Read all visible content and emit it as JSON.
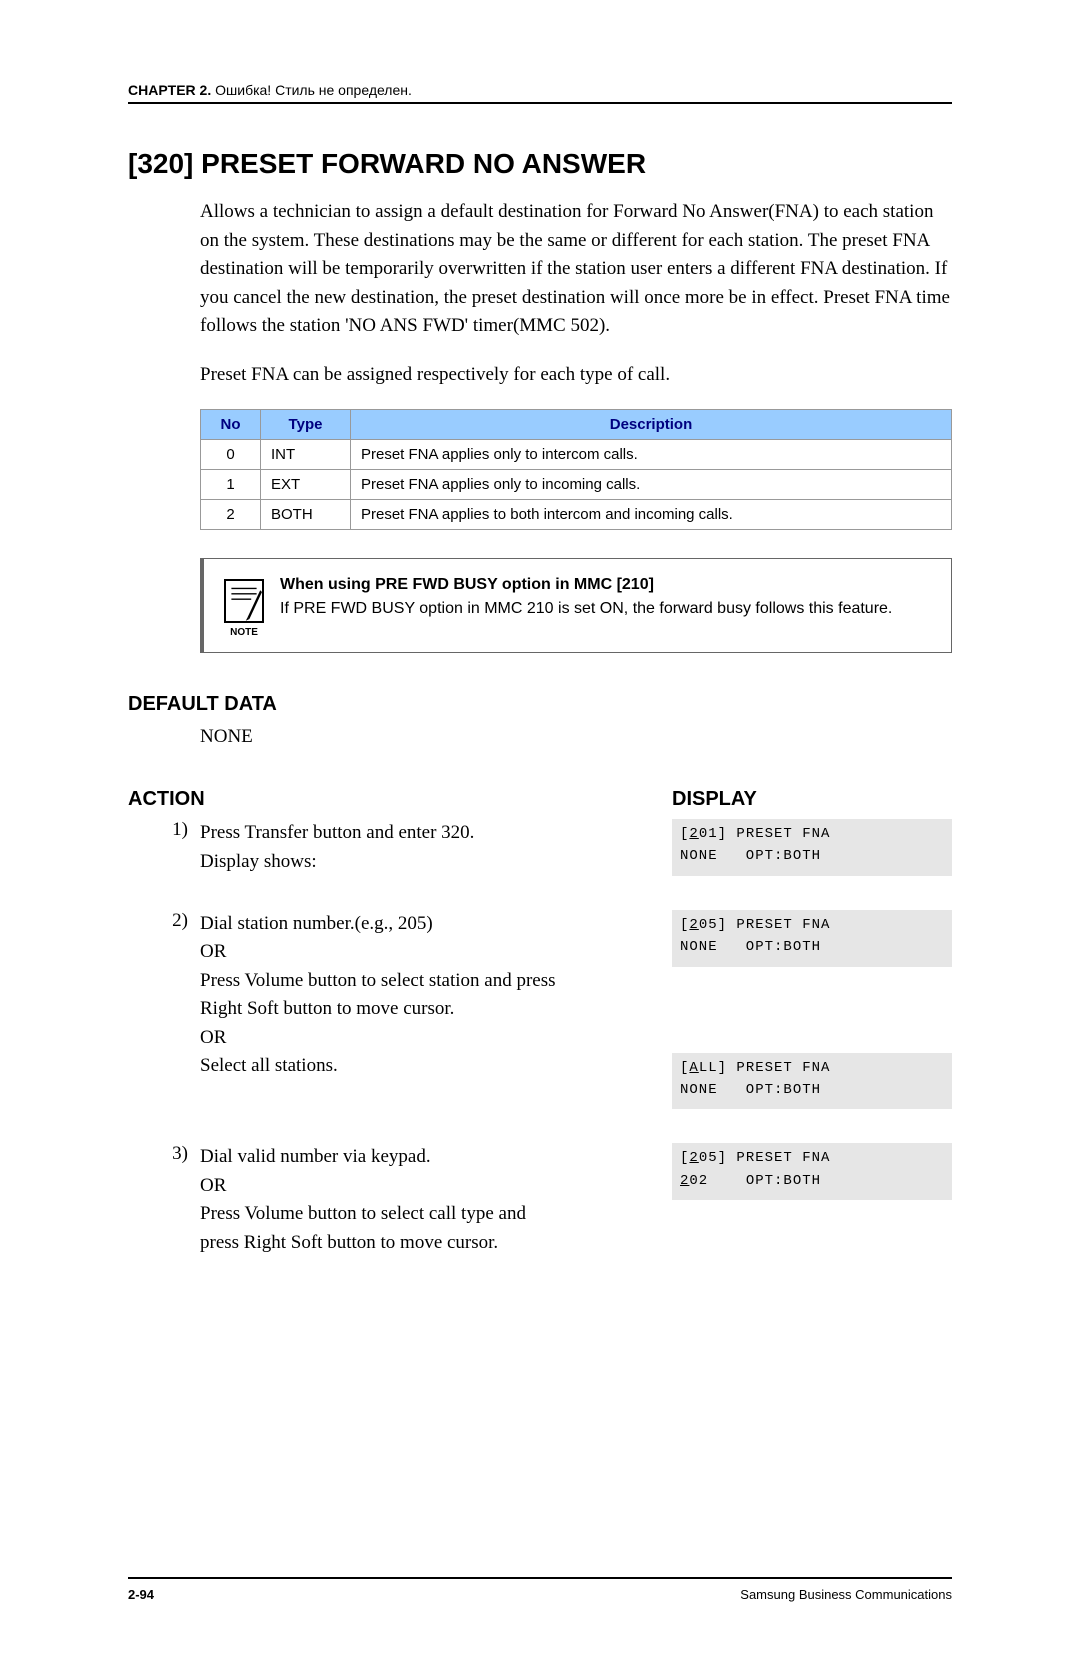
{
  "header": {
    "chapter_label": "CHAPTER 2.",
    "chapter_note": "Ошибка! Стиль не определен."
  },
  "title": "[320] PRESET FORWARD NO ANSWER",
  "paragraphs": {
    "p1": "Allows a technician to assign a default destination for Forward No Answer(FNA) to each station on the system. These destinations may be the same or different for each station. The preset FNA destination will be temporarily overwritten if the station user enters a different FNA destination. If you cancel the new destination, the preset destination will once more be in effect. Preset FNA time follows the station 'NO ANS FWD' timer(MMC 502).",
    "p2": "Preset FNA can be assigned respectively for each type of call."
  },
  "table": {
    "headers": {
      "no": "No",
      "type": "Type",
      "description": "Description"
    },
    "rows": [
      {
        "no": "0",
        "type": "INT",
        "desc": "Preset FNA applies only to intercom calls."
      },
      {
        "no": "1",
        "type": "EXT",
        "desc": "Preset FNA applies only to incoming calls."
      },
      {
        "no": "2",
        "type": "BOTH",
        "desc": "Preset FNA applies to both intercom and incoming calls."
      }
    ],
    "header_bg": "#99ccff",
    "header_color": "#000080"
  },
  "note": {
    "label": "NOTE",
    "title": "When using PRE FWD BUSY option in MMC [210]",
    "body": "If PRE FWD BUSY option in MMC 210 is set ON, the forward busy follows this feature."
  },
  "default_data": {
    "heading": "DEFAULT DATA",
    "value": "NONE"
  },
  "headings": {
    "action": "ACTION",
    "display": "DISPLAY"
  },
  "steps": [
    {
      "num": "1)",
      "lines": [
        "Press Transfer button and enter 320.",
        "Display shows:"
      ],
      "displays": [
        {
          "line1_pre": "[",
          "line1_u": "2",
          "line1_post": "01] PRESET FNA",
          "line2": "NONE   OPT:BOTH"
        }
      ]
    },
    {
      "num": "2)",
      "lines": [
        "Dial station number.(e.g., 205)",
        "OR",
        "Press Volume button to select station and press",
        "Right Soft button to move cursor.",
        "OR",
        "Select all stations."
      ],
      "displays": [
        {
          "line1_pre": "[",
          "line1_u": "2",
          "line1_post": "05] PRESET FNA",
          "line2": "NONE   OPT:BOTH"
        },
        {
          "spacer": true
        },
        {
          "line1_pre": "[",
          "line1_u": "A",
          "line1_post": "LL] PRESET FNA",
          "line2": "NONE   OPT:BOTH"
        }
      ]
    },
    {
      "num": "3)",
      "lines": [
        "Dial valid number via keypad.",
        "OR",
        "Press Volume button to select call type and",
        "press Right Soft button to move cursor."
      ],
      "displays": [
        {
          "line1_pre": "[",
          "line1_u": "2",
          "line1_post": "05] PRESET FNA",
          "line2_pre": "",
          "line2_u": "2",
          "line2_post": "02    OPT:BOTH"
        }
      ]
    }
  ],
  "footer": {
    "left": "2-94",
    "right": "Samsung Business Communications"
  },
  "colors": {
    "lcd_bg": "#e6e6e6",
    "rule": "#000000"
  }
}
